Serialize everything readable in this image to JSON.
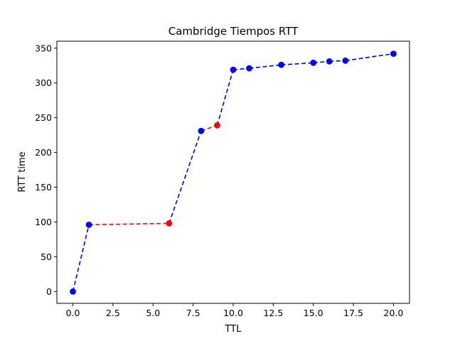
{
  "chart_data": {
    "type": "line",
    "title": "Cambridge Tiempos RTT",
    "xlabel": "TTL",
    "ylabel": "RTT time",
    "xlim": [
      -1,
      21
    ],
    "ylim": [
      -17,
      360
    ],
    "xticks": [
      0,
      2.5,
      5,
      7.5,
      10,
      12.5,
      15,
      17.5,
      20
    ],
    "xtick_labels": [
      "0.0",
      "2.5",
      "5.0",
      "7.5",
      "10.0",
      "12.5",
      "15.0",
      "17.5",
      "20.0"
    ],
    "yticks": [
      0,
      50,
      100,
      150,
      200,
      250,
      300,
      350
    ],
    "ytick_labels": [
      "0",
      "50",
      "100",
      "150",
      "200",
      "250",
      "300",
      "350"
    ],
    "grid": false,
    "line_style": "dashed",
    "colors": {
      "normal": "#0000ff",
      "highlight": "#ff0000"
    },
    "points": [
      {
        "x": 0,
        "y": 0,
        "color": "normal"
      },
      {
        "x": 1,
        "y": 96,
        "color": "normal"
      },
      {
        "x": 6,
        "y": 98,
        "color": "highlight"
      },
      {
        "x": 8,
        "y": 231,
        "color": "normal"
      },
      {
        "x": 9,
        "y": 239,
        "color": "highlight"
      },
      {
        "x": 10,
        "y": 319,
        "color": "normal"
      },
      {
        "x": 11,
        "y": 321,
        "color": "normal"
      },
      {
        "x": 13,
        "y": 326,
        "color": "normal"
      },
      {
        "x": 15,
        "y": 329,
        "color": "normal"
      },
      {
        "x": 16,
        "y": 331,
        "color": "normal"
      },
      {
        "x": 17,
        "y": 332,
        "color": "normal"
      },
      {
        "x": 20,
        "y": 342,
        "color": "normal"
      }
    ]
  }
}
